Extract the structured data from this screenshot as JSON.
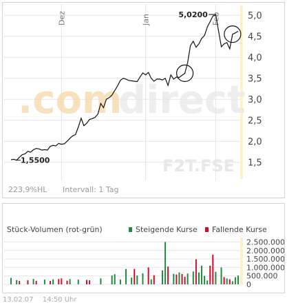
{
  "colors": {
    "line": "#111111",
    "grid": "#e6e6e6",
    "axis_band": "#fff0c8",
    "rising": "#1e8c3c",
    "falling": "#c8102e",
    "watermark": "#f6d7a8",
    "watermark2": "#e8e8e8"
  },
  "watermark": {
    "brand_part1": ".com",
    "brand_part2": "direct",
    "ticker": "F2T.FSE"
  },
  "price_info": {
    "change": "223,9%HL",
    "interval": "Intervall: 1 Tag"
  },
  "volume_legend": {
    "title": "Stück-Volumen (rot-grün)",
    "rising_label": "Steigende Kurse",
    "falling_label": "Fallende Kurse"
  },
  "footer": {
    "date": "13.02.07",
    "time": "14:50 Uhr"
  },
  "chart_data": [
    {
      "type": "line",
      "title": "",
      "ylim": [
        1.2,
        5.2
      ],
      "y_ticks": [
        "1,5",
        "2,0",
        "2,5",
        "3,0",
        "3,5",
        "4,0",
        "4,5",
        "5,0"
      ],
      "y_tick_values": [
        1.5,
        2.0,
        2.5,
        3.0,
        3.5,
        4.0,
        4.5,
        5.0
      ],
      "x_month_labels": [
        {
          "label": "Dez",
          "index": 18
        },
        {
          "label": "Jan",
          "index": 48
        },
        {
          "label": "Feb",
          "index": 73
        }
      ],
      "annotations": [
        {
          "text": "1,5500",
          "index": 0,
          "value": 1.55
        },
        {
          "text": "5,0200",
          "index": 72,
          "value": 5.02
        }
      ],
      "circles": [
        {
          "index": 62,
          "value": 3.62
        },
        {
          "index": 79,
          "value": 4.55
        }
      ],
      "grid": true,
      "series": [
        {
          "values": [
            1.56,
            1.57,
            1.55,
            1.62,
            1.68,
            1.7,
            1.76,
            1.74,
            1.8,
            1.83,
            1.82,
            1.79,
            1.8,
            1.79,
            1.88,
            1.9,
            1.89,
            1.95,
            1.93,
            1.94,
            2.0,
            2.07,
            2.13,
            2.16,
            2.34,
            2.55,
            2.37,
            2.43,
            2.52,
            2.54,
            2.57,
            2.65,
            2.9,
            2.8,
            3.0,
            3.04,
            3.1,
            3.21,
            3.32,
            3.45,
            3.5,
            3.48,
            3.45,
            3.44,
            3.43,
            3.42,
            3.53,
            3.63,
            3.58,
            3.64,
            3.5,
            3.43,
            3.48,
            3.48,
            3.46,
            3.5,
            3.33,
            3.58,
            3.48,
            3.53,
            3.52,
            3.57,
            3.62,
            3.88,
            4.28,
            4.38,
            4.24,
            4.32,
            4.45,
            4.52,
            4.72,
            4.85,
            4.98,
            5.02,
            4.63,
            4.25,
            4.32,
            4.35,
            4.2,
            4.55,
            4.58,
            4.62
          ]
        }
      ]
    },
    {
      "type": "bar",
      "title": "",
      "ylim": [
        0,
        2600000
      ],
      "y_ticks": [
        "0",
        "500.000",
        "1.000.000",
        "1.500.000",
        "2.000.000",
        "2.500.000"
      ],
      "y_tick_values": [
        0,
        500000,
        1000000,
        1500000,
        2000000,
        2500000
      ],
      "series": [
        {
          "name": "Steigende Kurse",
          "values": [
            [
              0,
              380000
            ],
            [
              2,
              250000
            ],
            [
              8,
              320000
            ],
            [
              12,
              280000
            ],
            [
              15,
              300000
            ],
            [
              21,
              310000
            ],
            [
              24,
              280000
            ],
            [
              32,
              350000
            ],
            [
              36,
              520000
            ],
            [
              37,
              600000
            ],
            [
              39,
              280000
            ],
            [
              41,
              910000
            ],
            [
              43,
              400000
            ],
            [
              45,
              520000
            ],
            [
              47,
              650000
            ],
            [
              50,
              300000
            ],
            [
              54,
              820000
            ],
            [
              55,
              2500000
            ],
            [
              58,
              620000
            ],
            [
              60,
              700000
            ],
            [
              63,
              640000
            ],
            [
              65,
              760000
            ],
            [
              67,
              700000
            ],
            [
              68,
              1100000
            ],
            [
              69,
              500000
            ],
            [
              70,
              230000
            ],
            [
              73,
              740000
            ],
            [
              75,
              1000000
            ],
            [
              77,
              350000
            ],
            [
              79,
              180000
            ],
            [
              80,
              420000
            ],
            [
              81,
              520000
            ]
          ]
        },
        {
          "name": "Fallende Kurse",
          "values": [
            [
              3,
              200000
            ],
            [
              6,
              240000
            ],
            [
              9,
              210000
            ],
            [
              14,
              200000
            ],
            [
              17,
              310000
            ],
            [
              18,
              350000
            ],
            [
              20,
              220000
            ],
            [
              27,
              260000
            ],
            [
              28,
              240000
            ],
            [
              44,
              910000
            ],
            [
              49,
              1000000
            ],
            [
              51,
              540000
            ],
            [
              56,
              1050000
            ],
            [
              59,
              580000
            ],
            [
              61,
              610000
            ],
            [
              62,
              450000
            ],
            [
              66,
              1480000
            ],
            [
              71,
              1100000
            ],
            [
              72,
              1750000
            ],
            [
              76,
              430000
            ],
            [
              78,
              300000
            ]
          ]
        }
      ]
    }
  ]
}
